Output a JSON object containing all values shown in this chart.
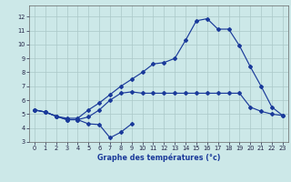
{
  "xlabel": "Graphe des températures (°c)",
  "bg_color": "#cce8e8",
  "grid_color": "#aac8c8",
  "line_color": "#1a3a9a",
  "xlim": [
    -0.5,
    23.5
  ],
  "ylim": [
    3,
    12.8
  ],
  "yticks": [
    3,
    4,
    5,
    6,
    7,
    8,
    9,
    10,
    11,
    12
  ],
  "xticks": [
    0,
    1,
    2,
    3,
    4,
    5,
    6,
    7,
    8,
    9,
    10,
    11,
    12,
    13,
    14,
    15,
    16,
    17,
    18,
    19,
    20,
    21,
    22,
    23
  ],
  "line1_x": [
    0,
    1,
    2,
    3,
    4,
    5,
    6,
    7,
    8,
    9
  ],
  "line1_y": [
    5.3,
    5.15,
    4.85,
    4.6,
    4.6,
    4.3,
    4.25,
    3.3,
    3.7,
    4.3
  ],
  "line2_x": [
    0,
    1,
    2,
    3,
    4,
    5,
    6,
    7,
    8,
    9,
    10,
    11,
    12,
    13,
    14,
    15,
    16,
    17,
    18,
    19,
    20,
    21,
    22,
    23
  ],
  "line2_y": [
    5.3,
    5.15,
    4.85,
    4.6,
    4.6,
    4.8,
    5.3,
    6.0,
    6.5,
    6.6,
    6.5,
    6.5,
    6.5,
    6.5,
    6.5,
    6.5,
    6.5,
    6.5,
    6.5,
    6.5,
    5.5,
    5.2,
    5.0,
    4.9
  ],
  "line3_x": [
    0,
    1,
    2,
    3,
    4,
    5,
    6,
    7,
    8,
    9,
    10,
    11,
    12,
    13,
    14,
    15,
    16,
    17,
    18,
    19,
    20,
    21,
    22,
    23
  ],
  "line3_y": [
    5.3,
    5.15,
    4.85,
    4.7,
    4.7,
    5.3,
    5.8,
    6.4,
    7.0,
    7.5,
    8.0,
    8.6,
    8.7,
    9.0,
    10.3,
    11.7,
    11.85,
    11.1,
    11.1,
    9.9,
    8.4,
    7.0,
    5.5,
    4.9
  ]
}
